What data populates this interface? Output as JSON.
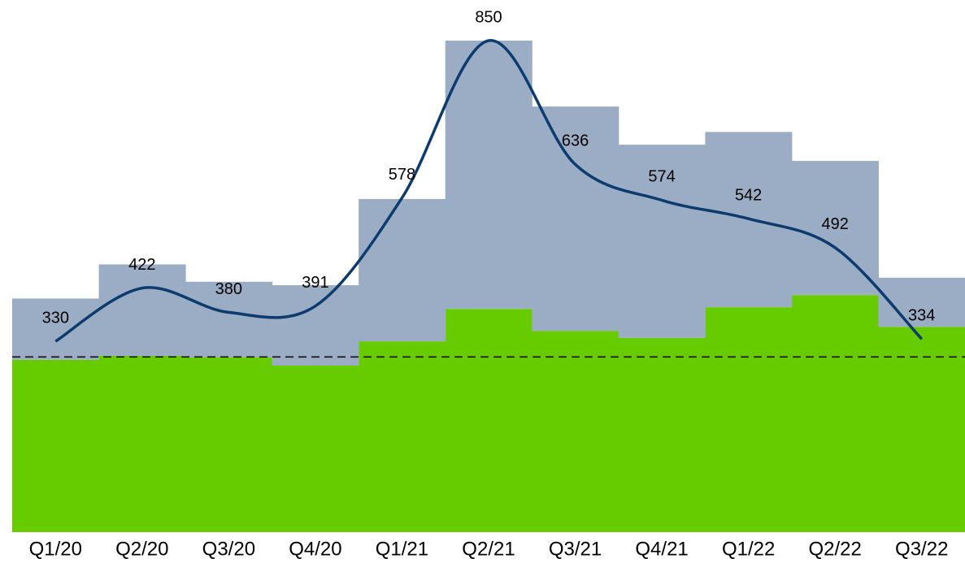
{
  "chart_data": {
    "type": "bar-line",
    "categories": [
      "Q1/20",
      "Q2/20",
      "Q3/20",
      "Q4/20",
      "Q1/21",
      "Q2/21",
      "Q3/21",
      "Q4/21",
      "Q1/22",
      "Q2/22",
      "Q3/22"
    ],
    "series": [
      {
        "kind": "bar",
        "color": "#66cc00",
        "values": [
          298,
          305,
          302,
          288,
          330,
          386,
          348,
          336,
          389,
          410,
          355
        ]
      },
      {
        "kind": "bar",
        "color": "#9aadc4",
        "values": [
          106,
          158,
          131,
          139,
          246,
          464,
          388,
          334,
          303,
          232,
          85
        ]
      },
      {
        "kind": "line",
        "color": "#0d3b6e",
        "values": [
          330,
          422,
          380,
          391,
          578,
          850,
          636,
          574,
          542,
          492,
          334
        ],
        "labels": true
      }
    ],
    "reference_value": 303,
    "ylim": [
      0,
      850
    ]
  }
}
